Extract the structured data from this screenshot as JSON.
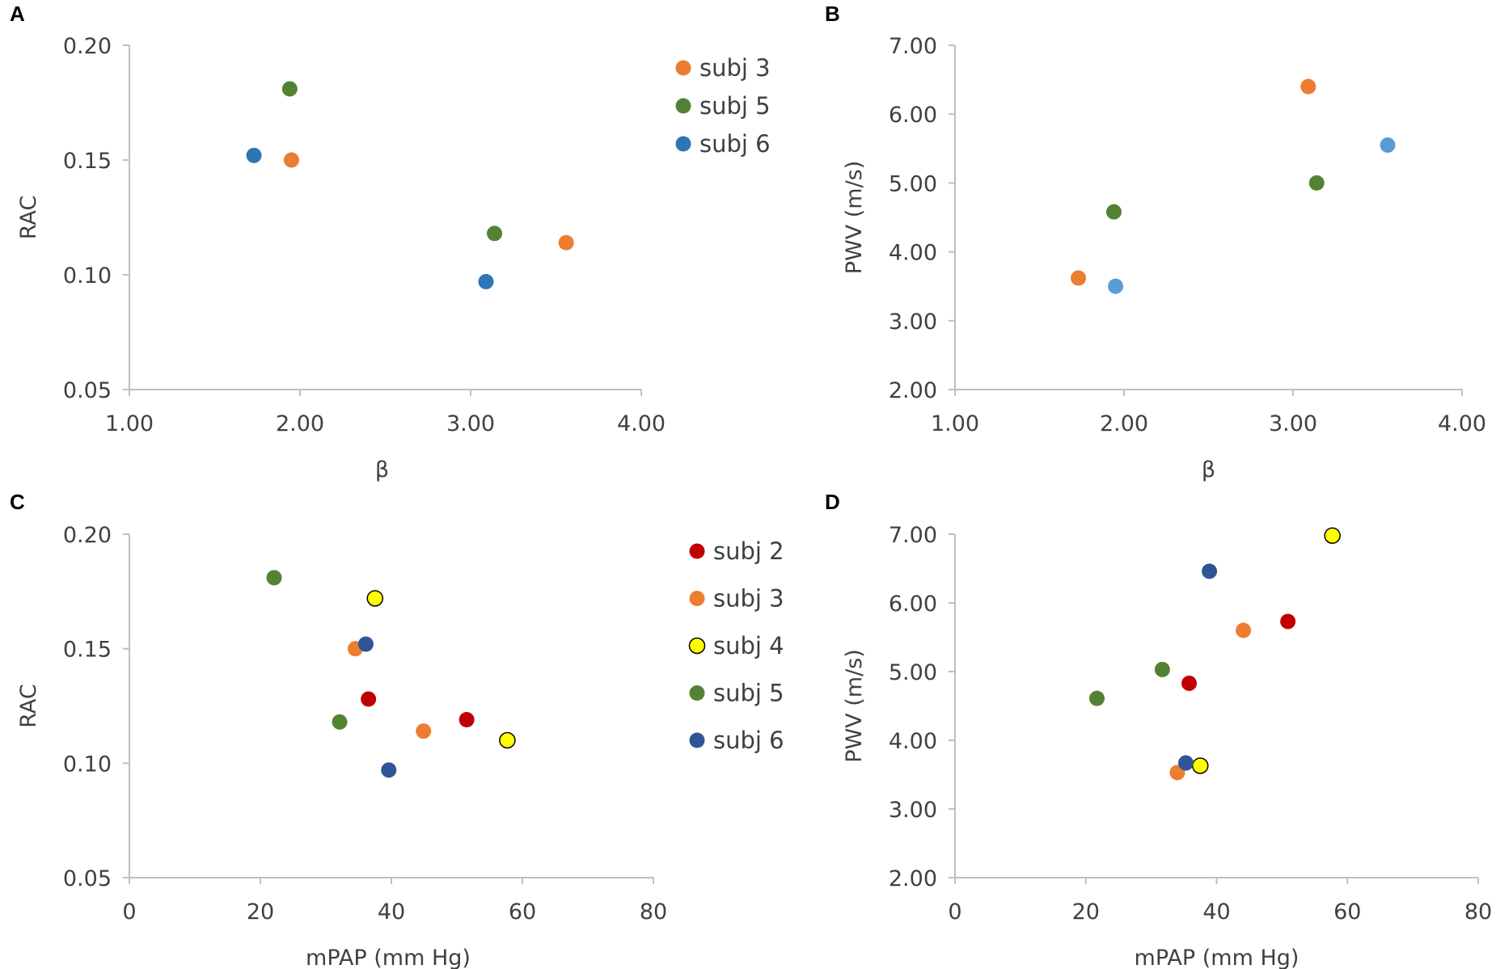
{
  "colors": {
    "subj 2": "#c00000",
    "subj 3": "#ed7d31",
    "subj 4": "#ffff00",
    "subj 5": "#548235",
    "subj 6": "#2e75b6",
    "subj 6 light": "#5b9bd5",
    "subj 6 dark": "#2f5597",
    "axis": "#bfbfbf",
    "text": "#404040"
  },
  "chart_data": [
    {
      "panel": "A",
      "type": "scatter",
      "title": "",
      "xlabel": "β",
      "ylabel": "RAC",
      "xlim": [
        1.0,
        4.0
      ],
      "ylim": [
        0.05,
        0.2
      ],
      "xticks": [
        "1.00",
        "2.00",
        "3.00",
        "4.00"
      ],
      "yticks": [
        "0.20",
        "0.15",
        "0.10",
        "0.05"
      ],
      "grid": false,
      "legend": "top-right",
      "series": [
        {
          "name": "subj 3",
          "color": "#ed7d31",
          "points": [
            [
              1.95,
              0.15
            ],
            [
              3.56,
              0.114
            ]
          ]
        },
        {
          "name": "subj 5",
          "color": "#548235",
          "points": [
            [
              1.94,
              0.181
            ],
            [
              3.14,
              0.118
            ]
          ]
        },
        {
          "name": "subj 6",
          "color": "#2e75b6",
          "points": [
            [
              1.73,
              0.152
            ],
            [
              3.09,
              0.097
            ]
          ]
        }
      ]
    },
    {
      "panel": "B",
      "type": "scatter",
      "title": "",
      "xlabel": "β",
      "ylabel": "PWV (m/s)",
      "xlim": [
        1.0,
        4.0
      ],
      "ylim": [
        2.0,
        7.0
      ],
      "xticks": [
        "1.00",
        "2.00",
        "3.00",
        "4.00"
      ],
      "yticks": [
        "7.00",
        "6.00",
        "5.00",
        "4.00",
        "3.00",
        "2.00"
      ],
      "grid": false,
      "legend": "none",
      "series": [
        {
          "name": "subj 3",
          "color": "#ed7d31",
          "points": [
            [
              1.73,
              3.62
            ],
            [
              3.09,
              6.4
            ]
          ]
        },
        {
          "name": "subj 5",
          "color": "#548235",
          "points": [
            [
              1.94,
              4.58
            ],
            [
              3.14,
              5.0
            ]
          ]
        },
        {
          "name": "subj 6",
          "color": "#5b9bd5",
          "points": [
            [
              1.95,
              3.5
            ],
            [
              3.56,
              5.55
            ]
          ]
        }
      ]
    },
    {
      "panel": "C",
      "type": "scatter",
      "title": "",
      "xlabel": "mPAP (mm Hg)",
      "ylabel": "RAC",
      "xlim": [
        0,
        80
      ],
      "ylim": [
        0.05,
        0.2
      ],
      "xticks": [
        "0",
        "20",
        "40",
        "60",
        "80"
      ],
      "yticks": [
        "0.20",
        "0.15",
        "0.10",
        "0.05"
      ],
      "grid": false,
      "legend": "top-right",
      "series": [
        {
          "name": "subj 2",
          "color": "#c00000",
          "points": [
            [
              36.5,
              0.128
            ],
            [
              51.5,
              0.119
            ]
          ]
        },
        {
          "name": "subj 3",
          "color": "#ed7d31",
          "points": [
            [
              34.5,
              0.15
            ],
            [
              44.9,
              0.114
            ]
          ]
        },
        {
          "name": "subj 4",
          "color": "#ffff00",
          "outline": true,
          "points": [
            [
              37.5,
              0.172
            ],
            [
              57.7,
              0.11
            ]
          ]
        },
        {
          "name": "subj 5",
          "color": "#548235",
          "points": [
            [
              22.1,
              0.181
            ],
            [
              32.1,
              0.118
            ]
          ]
        },
        {
          "name": "subj 6",
          "color": "#2f5597",
          "points": [
            [
              36.1,
              0.152
            ],
            [
              39.6,
              0.097
            ]
          ]
        }
      ]
    },
    {
      "panel": "D",
      "type": "scatter",
      "title": "",
      "xlabel": "mPAP (mm Hg)",
      "ylabel": "PWV (m/s)",
      "xlim": [
        0,
        80
      ],
      "ylim": [
        2.0,
        7.0
      ],
      "xticks": [
        "0",
        "20",
        "40",
        "60",
        "80"
      ],
      "yticks": [
        "7.00",
        "6.00",
        "5.00",
        "4.00",
        "3.00",
        "2.00"
      ],
      "grid": false,
      "legend": "none",
      "series": [
        {
          "name": "subj 2",
          "color": "#c00000",
          "points": [
            [
              35.8,
              4.83
            ],
            [
              50.9,
              5.73
            ]
          ]
        },
        {
          "name": "subj 3",
          "color": "#ed7d31",
          "points": [
            [
              34.0,
              3.53
            ],
            [
              44.1,
              5.6
            ]
          ]
        },
        {
          "name": "subj 4",
          "color": "#ffff00",
          "outline": true,
          "points": [
            [
              37.5,
              3.63
            ],
            [
              57.7,
              6.98
            ]
          ]
        },
        {
          "name": "subj 5",
          "color": "#548235",
          "points": [
            [
              21.7,
              4.61
            ],
            [
              31.7,
              5.03
            ]
          ]
        },
        {
          "name": "subj 6",
          "color": "#2f5597",
          "points": [
            [
              35.3,
              3.67
            ],
            [
              38.9,
              6.46
            ]
          ]
        }
      ]
    }
  ]
}
